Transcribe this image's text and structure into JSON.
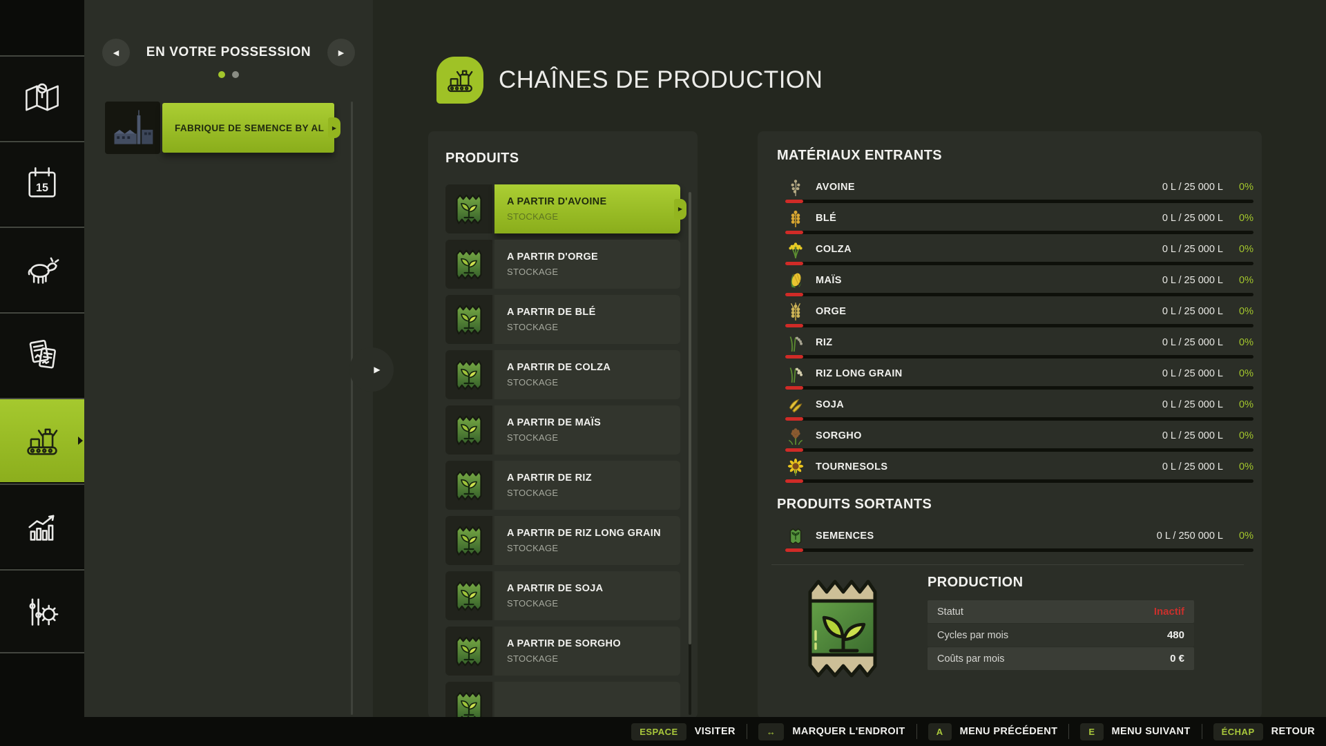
{
  "colors": {
    "accent": "#a3c62c",
    "accent_dark": "#8aad1b",
    "status_red": "#c9302c",
    "bar_red": "#d02b27"
  },
  "sidebar": {
    "items": [
      {
        "id": "map",
        "active": false
      },
      {
        "id": "calendar",
        "active": false
      },
      {
        "id": "animals",
        "active": false
      },
      {
        "id": "contracts",
        "active": false
      },
      {
        "id": "production",
        "active": true
      },
      {
        "id": "statistics",
        "active": false
      },
      {
        "id": "settings",
        "active": false
      }
    ]
  },
  "possession": {
    "title": "EN VOTRE POSSESSION",
    "prev_icon": "◀",
    "next_icon": "▶",
    "expand_icon": "▶",
    "dots": [
      {
        "state": "on"
      },
      {
        "state": "off"
      }
    ],
    "item": {
      "label": "FABRIQUE DE SEMENCE BY AL"
    }
  },
  "header": {
    "title": "CHAÎNES DE PRODUCTION"
  },
  "products": {
    "title": "PRODUITS",
    "items": [
      {
        "label": "A PARTIR D'AVOINE",
        "sub": "STOCKAGE",
        "selected": true
      },
      {
        "label": "A PARTIR D'ORGE",
        "sub": "STOCKAGE",
        "selected": false
      },
      {
        "label": "A PARTIR DE BLÉ",
        "sub": "STOCKAGE",
        "selected": false
      },
      {
        "label": "A PARTIR DE COLZA",
        "sub": "STOCKAGE",
        "selected": false
      },
      {
        "label": "A PARTIR DE MAÏS",
        "sub": "STOCKAGE",
        "selected": false
      },
      {
        "label": "A PARTIR DE RIZ",
        "sub": "STOCKAGE",
        "selected": false
      },
      {
        "label": "A PARTIR DE RIZ LONG GRAIN",
        "sub": "STOCKAGE",
        "selected": false
      },
      {
        "label": "A PARTIR DE SOJA",
        "sub": "STOCKAGE",
        "selected": false
      },
      {
        "label": "A PARTIR DE SORGHO",
        "sub": "STOCKAGE",
        "selected": false
      },
      {
        "label": "",
        "sub": "",
        "selected": false,
        "partial": true
      }
    ]
  },
  "inputs": {
    "title": "MATÉRIAUX ENTRANTS",
    "rows": [
      {
        "name": "AVOINE",
        "icon": "avoine",
        "value": "0 L / 25 000 L",
        "pct": "0%"
      },
      {
        "name": "BLÉ",
        "icon": "ble",
        "value": "0 L / 25 000 L",
        "pct": "0%"
      },
      {
        "name": "COLZA",
        "icon": "colza",
        "value": "0 L / 25 000 L",
        "pct": "0%"
      },
      {
        "name": "MAÏS",
        "icon": "mais",
        "value": "0 L / 25 000 L",
        "pct": "0%"
      },
      {
        "name": "ORGE",
        "icon": "orge",
        "value": "0 L / 25 000 L",
        "pct": "0%"
      },
      {
        "name": "RIZ",
        "icon": "riz",
        "value": "0 L / 25 000 L",
        "pct": "0%"
      },
      {
        "name": "RIZ LONG GRAIN",
        "icon": "rizlong",
        "value": "0 L / 25 000 L",
        "pct": "0%"
      },
      {
        "name": "SOJA",
        "icon": "soja",
        "value": "0 L / 25 000 L",
        "pct": "0%"
      },
      {
        "name": "SORGHO",
        "icon": "sorgho",
        "value": "0 L / 25 000 L",
        "pct": "0%"
      },
      {
        "name": "TOURNESOLS",
        "icon": "tournesol",
        "value": "0 L / 25 000 L",
        "pct": "0%"
      }
    ]
  },
  "outputs": {
    "title": "PRODUITS SORTANTS",
    "rows": [
      {
        "name": "SEMENCES",
        "icon": "semences",
        "value": "0 L / 250 000 L",
        "pct": "0%"
      }
    ]
  },
  "production": {
    "title": "PRODUCTION",
    "rows": [
      {
        "label": "Statut",
        "value": "Inactif",
        "red": true
      },
      {
        "label": "Cycles par mois",
        "value": "480",
        "red": false
      },
      {
        "label": "Coûts par mois",
        "value": "0 €",
        "red": false
      }
    ]
  },
  "bottom_bar": {
    "hints": [
      {
        "id": "visit",
        "key": "ESPACE",
        "label": "VISITER"
      },
      {
        "id": "mark",
        "key": "↔",
        "label": "MARQUER L'ENDROIT"
      },
      {
        "id": "prev-menu",
        "key": "A",
        "label": "MENU PRÉCÉDENT"
      },
      {
        "id": "next-menu",
        "key": "E",
        "label": "MENU SUIVANT"
      },
      {
        "id": "back",
        "key": "ÉCHAP",
        "label": "RETOUR"
      }
    ]
  }
}
